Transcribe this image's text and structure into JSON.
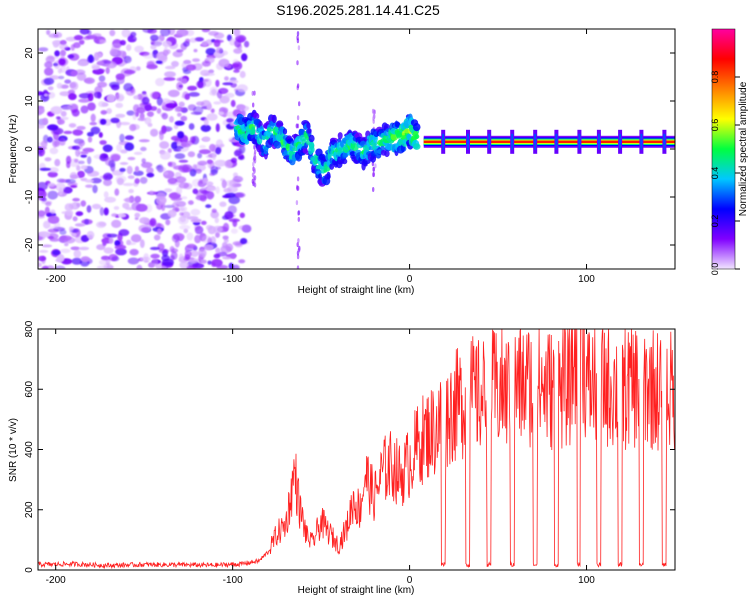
{
  "title": "S196.2025.281.14.41.C25",
  "chart_data": [
    {
      "type": "heatmap",
      "name": "spectrogram",
      "xlabel": "Height of straight line (km)",
      "ylabel": "Frequency (Hz)",
      "xlim": [
        -210,
        150
      ],
      "ylim": [
        -25,
        25
      ],
      "xticks": [
        -200,
        -100,
        0,
        100
      ],
      "yticks": [
        -20,
        -10,
        0,
        10,
        20
      ],
      "colorbar": {
        "label": "Normalized spectral amplitude",
        "range": [
          0,
          1
        ],
        "ticks": [
          0.0,
          0.2,
          0.4,
          0.6,
          0.8
        ],
        "colors": [
          "#f2e6ff",
          "#8000ff",
          "#0000ff",
          "#00c8ff",
          "#00ff40",
          "#ffff00",
          "#ff8000",
          "#ff0000",
          "#ff00a0"
        ]
      },
      "features": [
        {
          "name": "noise region",
          "x_range": [
            -210,
            -92
          ],
          "y_range": [
            -25,
            25
          ]
        },
        {
          "name": "descending track",
          "points": [
            [
              -98,
              5
            ],
            [
              -92,
              3
            ],
            [
              -88,
              5
            ],
            [
              -82,
              1
            ],
            [
              -78,
              4
            ],
            [
              -74,
              3
            ],
            [
              -70,
              1
            ],
            [
              -66,
              -1
            ],
            [
              -62,
              1
            ],
            [
              -58,
              3
            ],
            [
              -54,
              -2
            ],
            [
              -48,
              -5
            ],
            [
              -44,
              -1
            ],
            [
              -38,
              0
            ],
            [
              -32,
              1
            ],
            [
              -26,
              -1
            ],
            [
              -22,
              1
            ],
            [
              -18,
              1
            ],
            [
              -14,
              2
            ],
            [
              -8,
              2
            ],
            [
              -4,
              3
            ],
            [
              0,
              4
            ],
            [
              4,
              2
            ]
          ]
        },
        {
          "name": "steady line",
          "x_range": [
            8,
            150
          ],
          "frequency": 1.5
        }
      ]
    },
    {
      "type": "line",
      "name": "snr",
      "xlabel": "Height of straight line (km)",
      "ylabel": "SNR (10 * v/v)",
      "xlim": [
        -210,
        150
      ],
      "ylim": [
        0,
        800
      ],
      "xticks": [
        -200,
        -100,
        0,
        100
      ],
      "yticks": [
        0,
        200,
        400,
        600,
        800
      ],
      "color": "#ff2020",
      "x": [
        -210,
        -190,
        -170,
        -150,
        -130,
        -110,
        -95,
        -85,
        -80,
        -75,
        -70,
        -67,
        -65,
        -62,
        -58,
        -55,
        -50,
        -45,
        -40,
        -35,
        -32,
        -28,
        -25,
        -20,
        -15,
        -10,
        -5,
        0,
        5,
        10,
        15,
        20,
        25,
        30,
        35,
        40,
        45,
        50,
        55,
        60,
        70,
        80,
        90,
        97,
        100,
        110,
        120,
        130,
        140,
        150
      ],
      "values": [
        18,
        20,
        15,
        18,
        17,
        16,
        20,
        30,
        60,
        120,
        150,
        250,
        330,
        200,
        110,
        90,
        160,
        120,
        80,
        150,
        230,
        200,
        320,
        240,
        330,
        350,
        310,
        360,
        420,
        450,
        470,
        510,
        540,
        560,
        580,
        570,
        590,
        600,
        590,
        610,
        620,
        600,
        610,
        800,
        610,
        620,
        600,
        620,
        600,
        590
      ],
      "dropouts": [
        19,
        33,
        45,
        58,
        71,
        83,
        96,
        107,
        119,
        131,
        144
      ]
    }
  ]
}
